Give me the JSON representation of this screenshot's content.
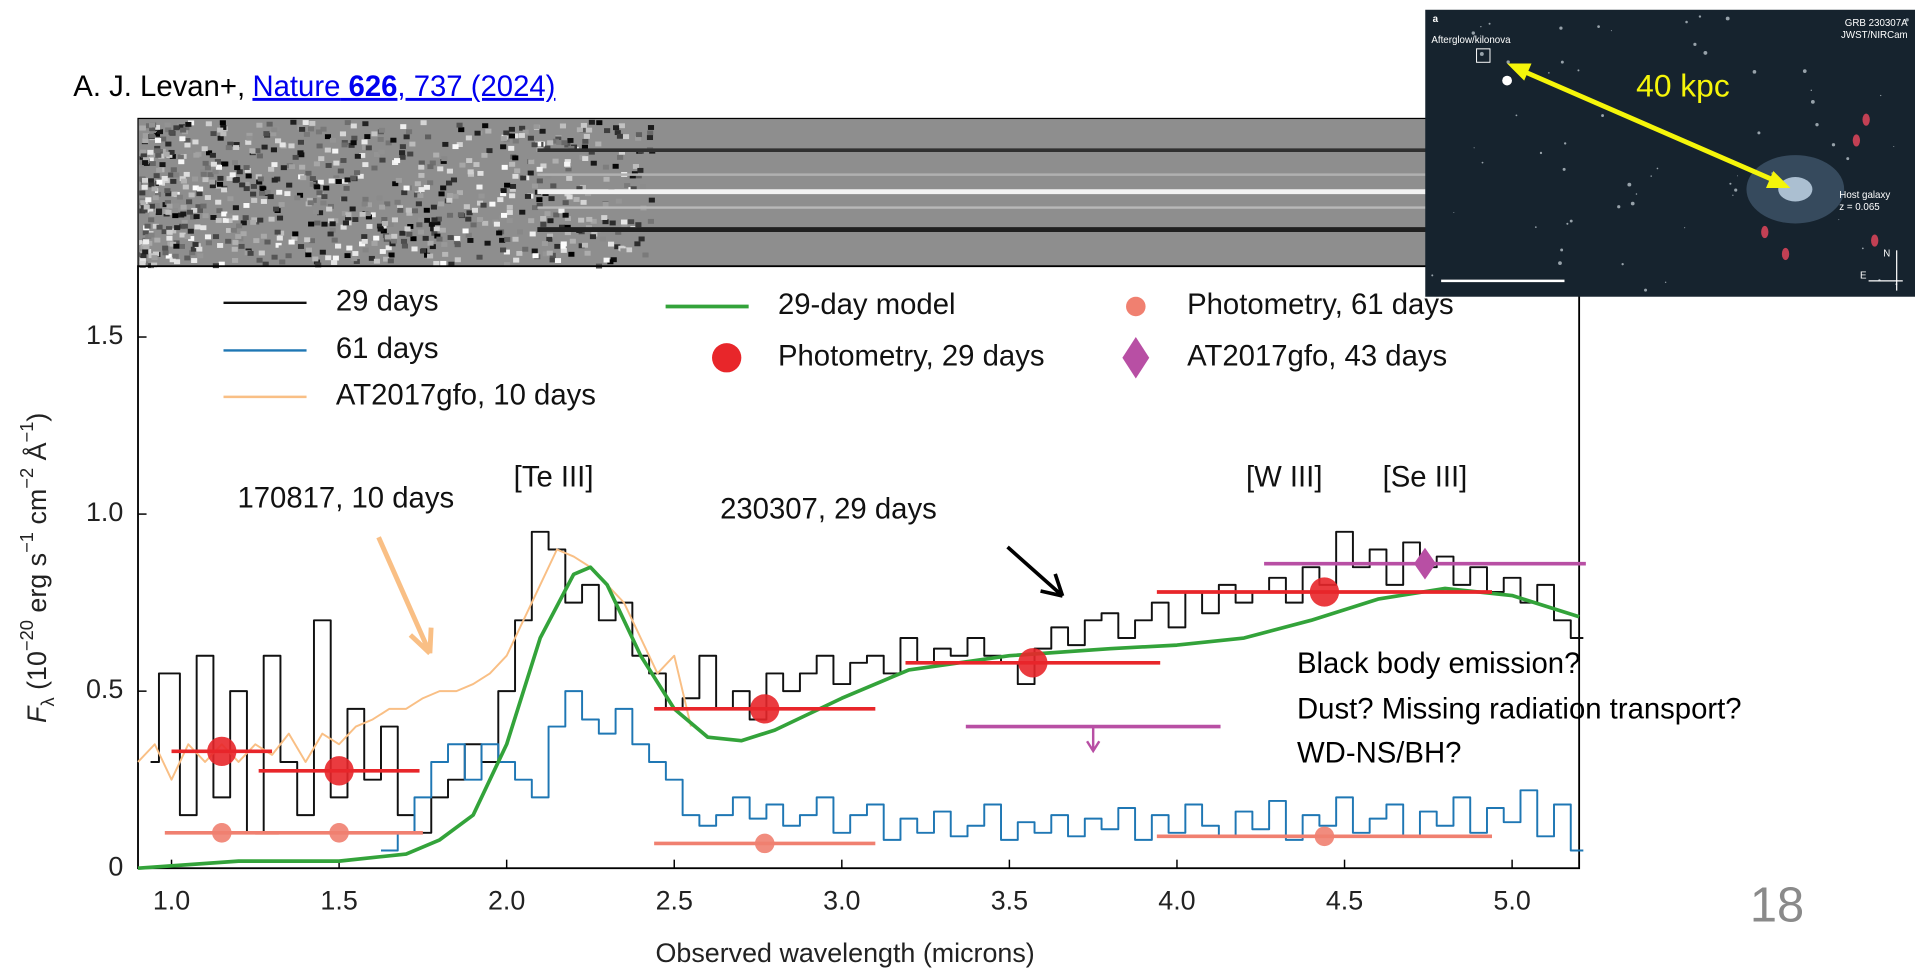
{
  "citation": {
    "author": "A. J. Levan+,",
    "link": [
      "Nature",
      " 626",
      ", 737 (2024)"
    ]
  },
  "slide_number": "18",
  "notes": [
    "Black body emission?",
    "Dust? Missing radiation transport?",
    "WD-NS/BH?"
  ],
  "inset": {
    "panel": "a",
    "source": "Afterglow/kilonova",
    "grb": "GRB 230307A",
    "instrument": "JWST/NIRCam",
    "host": "Host galaxy",
    "redshift": "z = 0.065",
    "distance": "40 kpc",
    "north": "N",
    "east": "E"
  },
  "chart_data": {
    "type": "line",
    "x_label": "Observed wavelength (microns)",
    "y_label": [
      {
        "text": "F",
        "style": "italic"
      },
      {
        "text": "λ",
        "style": "sub"
      },
      {
        "text": " (10",
        "style": "normal"
      },
      {
        "text": "−20",
        "style": "sup"
      },
      {
        "text": " erg s",
        "style": "normal"
      },
      {
        "text": "−1",
        "style": "sup"
      },
      {
        "text": " cm",
        "style": "normal"
      },
      {
        "text": "−2",
        "style": "sup"
      },
      {
        "text": " Å",
        "style": "normal"
      },
      {
        "text": "−1",
        "style": "sup"
      },
      {
        "text": ")",
        "style": "normal"
      }
    ],
    "xlim": [
      0.9,
      5.2
    ],
    "ylim": [
      0,
      1.7
    ],
    "xticks": [
      {
        "value": 1,
        "label": "1.0"
      },
      1.5,
      {
        "value": 2,
        "label": "2.0"
      },
      2.5,
      {
        "value": 3,
        "label": "3.0"
      },
      3.5,
      {
        "value": 4,
        "label": "4.0"
      },
      4.5,
      {
        "value": 5,
        "label": "5.0"
      }
    ],
    "yticks": [
      0,
      0.5,
      {
        "value": 1,
        "label": "1.0"
      },
      1.5
    ],
    "annotations": [
      {
        "text": "[Te III]",
        "x": 2.14,
        "y": 1.1
      },
      {
        "text": "[W III]",
        "x": 4.32,
        "y": 1.1
      },
      {
        "text": "[Se III]",
        "x": 4.74,
        "y": 1.1
      },
      {
        "text": "170817, 10 days",
        "x": 1.52,
        "y": 1.04,
        "color": "#f9bf85"
      },
      {
        "text": "230307, 29 days",
        "x": 2.96,
        "y": 1.01,
        "color": "#000000"
      }
    ],
    "series": [
      {
        "name": "29 days",
        "kind": "step",
        "color": "#111111",
        "x": [
          0.95,
          1.0,
          1.05,
          1.1,
          1.15,
          1.2,
          1.25,
          1.3,
          1.35,
          1.4,
          1.45,
          1.5,
          1.55,
          1.6,
          1.65,
          1.7,
          1.75,
          1.8,
          1.85,
          1.9,
          1.95,
          2.0,
          2.05,
          2.1,
          2.15,
          2.2,
          2.25,
          2.3,
          2.35,
          2.4,
          2.45,
          2.5,
          2.55,
          2.6,
          2.65,
          2.7,
          2.75,
          2.8,
          2.85,
          2.9,
          2.95,
          3.0,
          3.05,
          3.1,
          3.15,
          3.2,
          3.25,
          3.3,
          3.35,
          3.4,
          3.45,
          3.5,
          3.55,
          3.6,
          3.65,
          3.7,
          3.75,
          3.8,
          3.85,
          3.9,
          3.95,
          4.0,
          4.05,
          4.1,
          4.15,
          4.2,
          4.25,
          4.3,
          4.35,
          4.4,
          4.45,
          4.5,
          4.55,
          4.6,
          4.65,
          4.7,
          4.75,
          4.8,
          4.85,
          4.9,
          4.95,
          5.0,
          5.05,
          5.1,
          5.15,
          5.2
        ],
        "values": [
          0.3,
          0.55,
          0.15,
          0.6,
          0.2,
          0.5,
          0.1,
          0.6,
          0.3,
          0.15,
          0.7,
          0.2,
          0.45,
          0.25,
          0.4,
          0.15,
          0.1,
          0.2,
          0.25,
          0.35,
          0.3,
          0.5,
          0.7,
          0.95,
          0.9,
          0.75,
          0.8,
          0.7,
          0.75,
          0.6,
          0.55,
          0.45,
          0.48,
          0.6,
          0.45,
          0.5,
          0.42,
          0.55,
          0.5,
          0.55,
          0.6,
          0.52,
          0.58,
          0.6,
          0.55,
          0.65,
          0.58,
          0.62,
          0.6,
          0.65,
          0.6,
          0.58,
          0.52,
          0.62,
          0.68,
          0.63,
          0.7,
          0.72,
          0.65,
          0.7,
          0.75,
          0.68,
          0.78,
          0.72,
          0.8,
          0.75,
          0.78,
          0.82,
          0.75,
          0.85,
          0.8,
          0.95,
          0.85,
          0.9,
          0.8,
          0.92,
          0.85,
          0.88,
          0.8,
          0.85,
          0.78,
          0.82,
          0.75,
          0.8,
          0.7,
          0.65
        ]
      },
      {
        "name": "61 days",
        "kind": "step",
        "color": "#1f77b4",
        "x": [
          0.95,
          1.0,
          1.05,
          1.1,
          1.15,
          1.2,
          1.25,
          1.3,
          1.35,
          1.4,
          1.45,
          1.5,
          1.55,
          1.6,
          1.65,
          1.7,
          1.75,
          1.8,
          1.85,
          1.9,
          1.95,
          2.0,
          2.05,
          2.1,
          2.15,
          2.2,
          2.25,
          2.3,
          2.35,
          2.4,
          2.45,
          2.5,
          2.55,
          2.6,
          2.65,
          2.7,
          2.75,
          2.8,
          2.85,
          2.9,
          2.95,
          3.0,
          3.05,
          3.1,
          3.15,
          3.2,
          3.25,
          3.3,
          3.35,
          3.4,
          3.45,
          3.5,
          3.55,
          3.6,
          3.65,
          3.7,
          3.75,
          3.8,
          3.85,
          3.9,
          3.95,
          4.0,
          4.05,
          4.1,
          4.15,
          4.2,
          4.25,
          4.3,
          4.35,
          4.4,
          4.45,
          4.5,
          4.55,
          4.6,
          4.65,
          4.7,
          4.75,
          4.8,
          4.85,
          4.9,
          4.95,
          5.0,
          5.05,
          5.1,
          5.15,
          5.2
        ],
        "values": [
          null,
          null,
          null,
          null,
          null,
          null,
          null,
          null,
          null,
          null,
          null,
          null,
          null,
          null,
          0.05,
          0.1,
          0.2,
          0.3,
          0.35,
          0.25,
          0.35,
          0.3,
          0.25,
          0.2,
          0.4,
          0.5,
          0.42,
          0.38,
          0.45,
          0.35,
          0.3,
          0.25,
          0.15,
          0.12,
          0.15,
          0.2,
          0.14,
          0.18,
          0.12,
          0.15,
          0.2,
          0.1,
          0.15,
          0.18,
          0.08,
          0.14,
          0.1,
          0.16,
          0.09,
          0.12,
          0.18,
          0.08,
          0.13,
          0.1,
          0.15,
          0.09,
          0.14,
          0.11,
          0.17,
          0.08,
          0.15,
          0.1,
          0.18,
          0.12,
          0.09,
          0.16,
          0.11,
          0.19,
          0.08,
          0.15,
          0.12,
          0.2,
          0.1,
          0.14,
          0.18,
          0.09,
          0.16,
          0.12,
          0.2,
          0.1,
          0.17,
          0.13,
          0.22,
          0.09,
          0.18,
          0.05
        ]
      },
      {
        "name": "AT2017gfo, 10 days",
        "kind": "line",
        "color": "#f9bf85",
        "x": [
          0.9,
          0.95,
          1.0,
          1.05,
          1.1,
          1.15,
          1.2,
          1.25,
          1.3,
          1.35,
          1.4,
          1.45,
          1.5,
          1.55,
          1.6,
          1.65,
          1.7,
          1.75,
          1.8,
          1.85,
          1.9,
          1.95,
          2.0,
          2.05,
          2.1,
          2.15,
          2.2,
          2.25,
          2.3,
          2.35,
          2.4,
          2.45,
          2.5,
          2.55
        ],
        "values": [
          0.3,
          0.35,
          0.25,
          0.35,
          0.3,
          0.35,
          0.3,
          0.35,
          0.32,
          0.38,
          0.3,
          0.38,
          0.35,
          0.4,
          0.42,
          0.45,
          0.45,
          0.48,
          0.5,
          0.5,
          0.52,
          0.55,
          0.6,
          0.7,
          0.8,
          0.9,
          0.88,
          0.85,
          0.8,
          0.75,
          0.65,
          0.55,
          0.6,
          0.4
        ]
      },
      {
        "name": "29-day model",
        "kind": "line",
        "color": "#33a33a",
        "x": [
          0.9,
          1.2,
          1.5,
          1.7,
          1.8,
          1.9,
          2.0,
          2.1,
          2.2,
          2.25,
          2.3,
          2.4,
          2.5,
          2.6,
          2.7,
          2.8,
          3.0,
          3.2,
          3.5,
          3.8,
          4.0,
          4.2,
          4.4,
          4.6,
          4.8,
          5.0,
          5.2
        ],
        "values": [
          0.0,
          0.02,
          0.02,
          0.04,
          0.08,
          0.15,
          0.35,
          0.65,
          0.83,
          0.85,
          0.8,
          0.6,
          0.45,
          0.37,
          0.36,
          0.39,
          0.48,
          0.56,
          0.6,
          0.62,
          0.63,
          0.65,
          0.7,
          0.76,
          0.79,
          0.77,
          0.71
        ]
      },
      {
        "name": "Photometry, 29 days",
        "kind": "points",
        "marker": "circle",
        "color": "#e8262a",
        "x": [
          1.15,
          1.5,
          2.77,
          3.57,
          4.44
        ],
        "values": [
          0.33,
          0.275,
          0.45,
          0.58,
          0.78
        ],
        "xerr": [
          0.15,
          0.24,
          0.33,
          0.38,
          0.5
        ]
      },
      {
        "name": "Photometry, 61 days",
        "kind": "points",
        "marker": "circle",
        "color": "#f08070",
        "x": [
          1.15,
          1.5,
          2.77,
          4.44
        ],
        "values": [
          0.1,
          0.1,
          0.07,
          0.09
        ],
        "xerr": [
          0.17,
          0.25,
          0.33,
          0.5
        ]
      },
      {
        "name": "AT2017gfo, 43 days",
        "kind": "points",
        "marker": "diamond",
        "color": "#b84fa4",
        "x": [
          3.75,
          4.74
        ],
        "values": [
          0.4,
          0.86
        ],
        "xerr": [
          0.38,
          0.48
        ],
        "upper_limit": [
          true,
          false
        ]
      }
    ]
  }
}
